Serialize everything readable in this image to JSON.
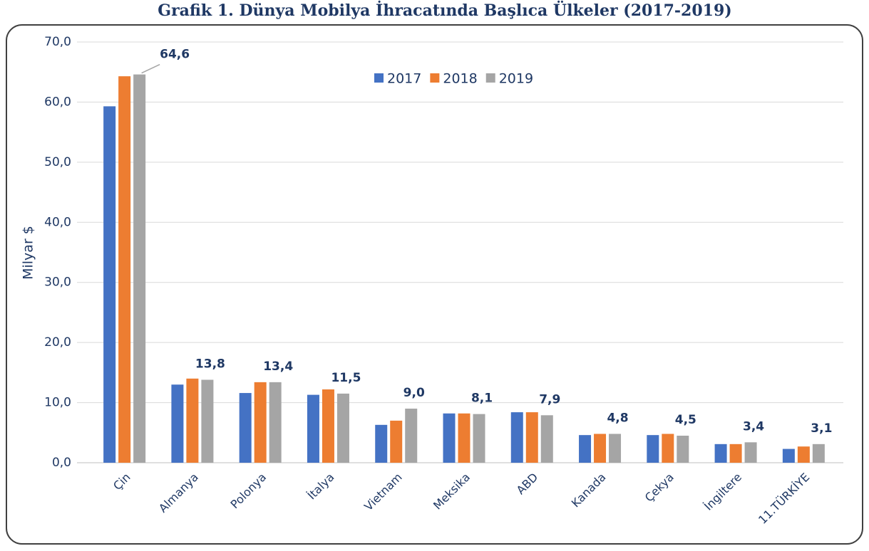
{
  "chart_data": {
    "type": "bar",
    "title": "Grafik 1. Dünya Mobilya İhracatında Başlıca Ülkeler (2017-2019)",
    "y_label": "Milyar $",
    "categories": [
      "Çin",
      "Almanya",
      "Polonya",
      "İtalya",
      "Vietnam",
      "Meksika",
      "ABD",
      "Kanada",
      "Çekya",
      "İngiltere",
      "11.TÜRKİYE"
    ],
    "series": [
      {
        "name": "2017",
        "color": "#4472c4",
        "values": [
          59.3,
          13.0,
          11.6,
          11.3,
          6.3,
          8.2,
          8.4,
          4.6,
          4.6,
          3.1,
          2.3
        ]
      },
      {
        "name": "2018",
        "color": "#ed7d31",
        "values": [
          64.3,
          14.0,
          13.4,
          12.2,
          7.0,
          8.2,
          8.4,
          4.8,
          4.8,
          3.1,
          2.7
        ]
      },
      {
        "name": "2019",
        "color": "#a5a5a5",
        "values": [
          64.6,
          13.8,
          13.4,
          11.5,
          9.0,
          8.1,
          7.9,
          4.8,
          4.5,
          3.4,
          3.1
        ],
        "value_labels": [
          "64,6",
          "13,8",
          "13,4",
          "11,5",
          "9,0",
          "8,1",
          "7,9",
          "4,8",
          "4,5",
          "3,4",
          "3,1"
        ]
      }
    ],
    "ylim": [
      0,
      70
    ],
    "yticks": [
      {
        "value": 0,
        "label": "0,0"
      },
      {
        "value": 10,
        "label": "10,0"
      },
      {
        "value": 20,
        "label": "20,0"
      },
      {
        "value": 30,
        "label": "30,0"
      },
      {
        "value": 40,
        "label": "40,0"
      },
      {
        "value": 50,
        "label": "50,0"
      },
      {
        "value": 60,
        "label": "60,0"
      },
      {
        "value": 70,
        "label": "70,0"
      }
    ],
    "grid": true,
    "legend": "top"
  }
}
